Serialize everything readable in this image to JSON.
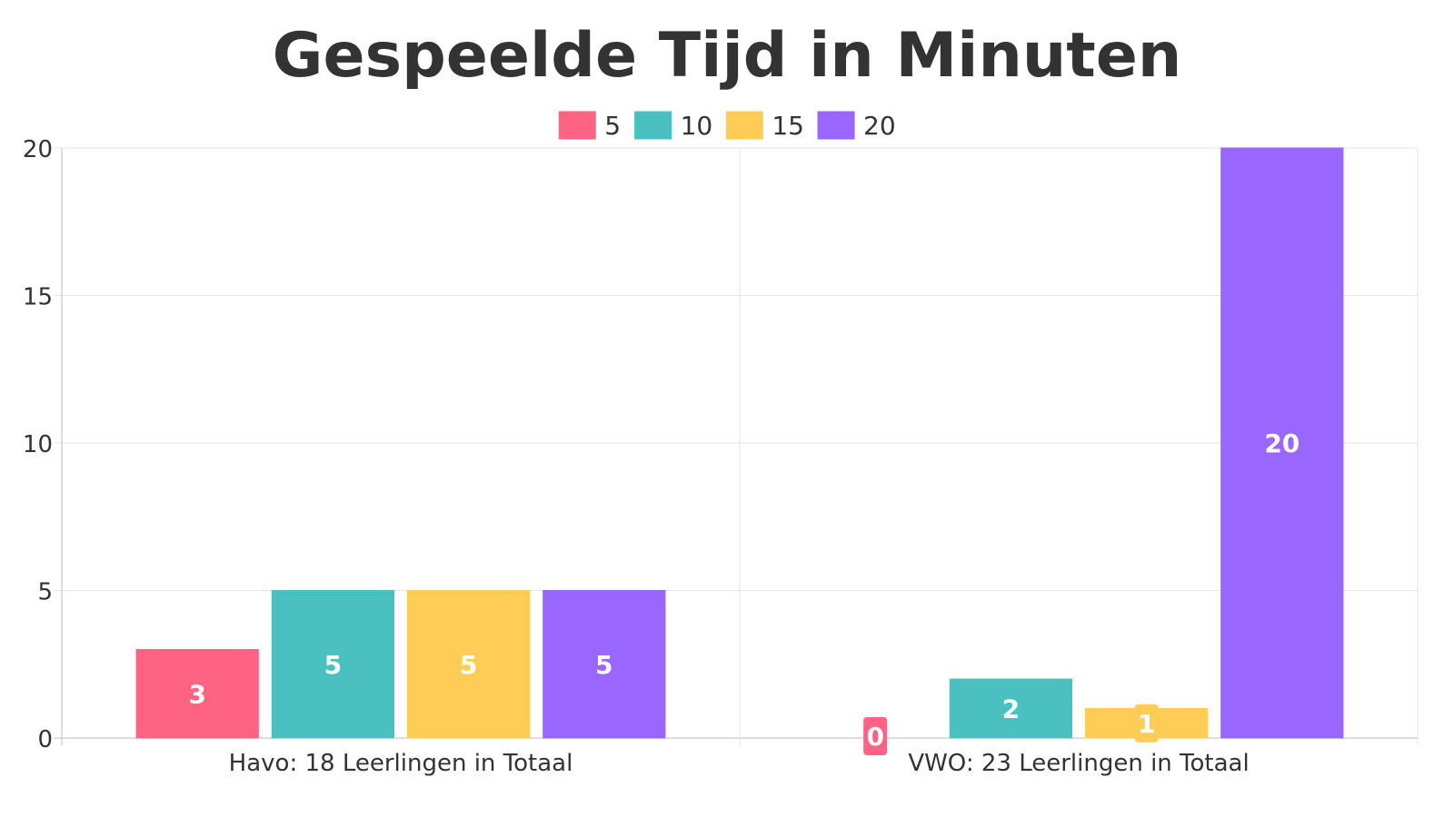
{
  "chart_data": {
    "type": "bar",
    "title": "Gespeelde Tijd in Minuten",
    "categories": [
      "Havo: 18 Leerlingen in Totaal",
      "VWO: 23 Leerlingen in Totaal"
    ],
    "series": [
      {
        "name": "5",
        "values": [
          3,
          0
        ],
        "color": "#ff6384"
      },
      {
        "name": "10",
        "values": [
          5,
          2
        ],
        "color": "#4bc0c0"
      },
      {
        "name": "15",
        "values": [
          5,
          1
        ],
        "color": "#ffcd56"
      },
      {
        "name": "20",
        "values": [
          5,
          20
        ],
        "color": "#9966ff"
      }
    ],
    "ylim": [
      0,
      20
    ],
    "yticks": [
      0,
      5,
      10,
      15,
      20
    ],
    "grid": true,
    "legend_position": "top-center",
    "data_labels": true
  }
}
